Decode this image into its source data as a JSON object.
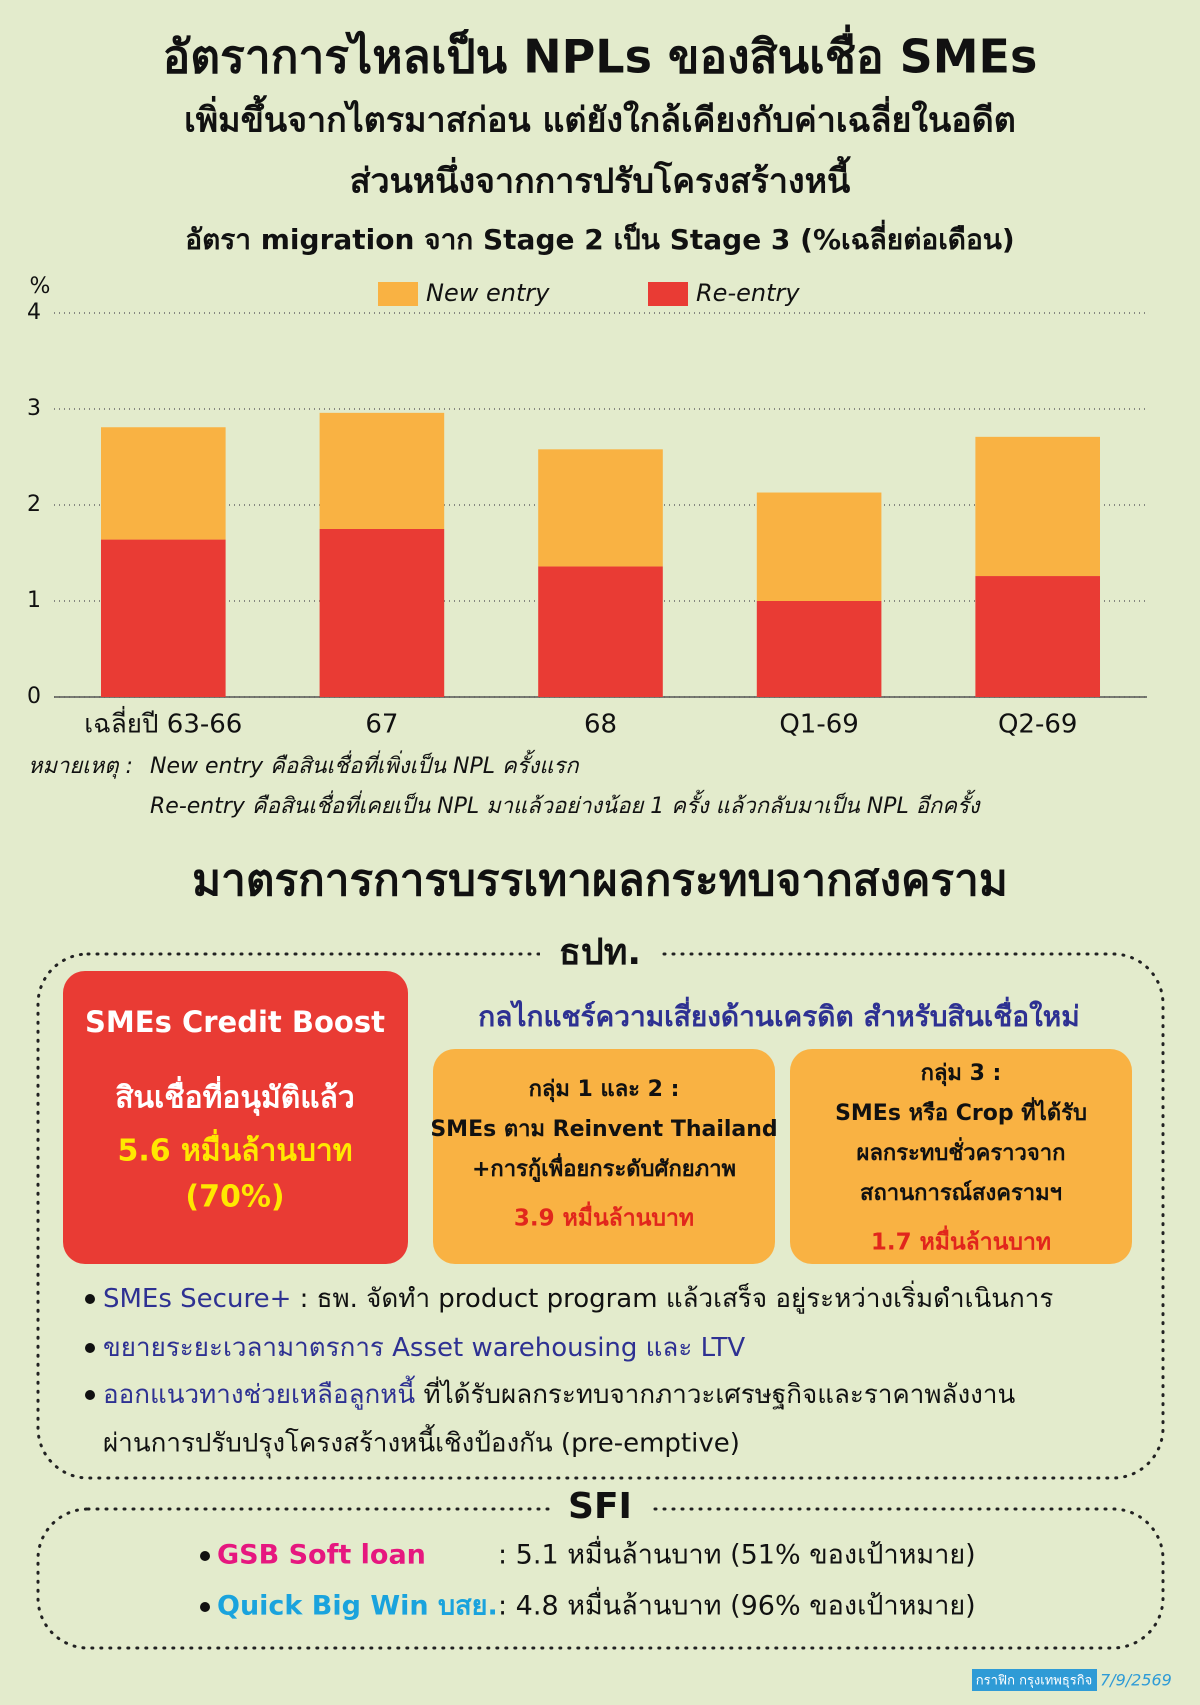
{
  "header": {
    "title": "อัตราการไหลเป็น NPLs ของสินเชื่อ SMEs",
    "subtitle1": "เพิ่มขึ้นจากไตรมาสก่อน แต่ยังใกล้เคียงกับค่าเฉลี่ยในอดีต",
    "subtitle2": "ส่วนหนึ่งจากการปรับโครงสร้างหนี้"
  },
  "chart_data": {
    "type": "bar",
    "stacked": true,
    "title": "อัตรา migration จาก Stage 2 เป็น Stage 3 (%เฉลี่ยต่อเดือน)",
    "y_label": "%",
    "categories": [
      "เฉลี่ยปี 63-66",
      "67",
      "68",
      "Q1-69",
      "Q2-69"
    ],
    "series": [
      {
        "name": "New entry",
        "color": "#f9b243",
        "values": [
          1.17,
          1.21,
          1.22,
          1.13,
          1.45
        ]
      },
      {
        "name": "Re-entry",
        "color": "#e93b34",
        "values": [
          1.64,
          1.75,
          1.36,
          1.0,
          1.26
        ]
      }
    ],
    "ylim": [
      0,
      4
    ],
    "yticks": [
      0,
      1,
      2,
      3,
      4
    ],
    "grid": true,
    "legend": "top"
  },
  "notes": {
    "label": "หมายเหตุ :",
    "lines": [
      "New entry คือสินเชื่อที่เพิ่งเป็น NPL ครั้งแรก",
      "Re-entry คือสินเชื่อที่เคยเป็น NPL มาแล้วอย่างน้อย 1 ครั้ง แล้วกลับมาเป็น NPL อีกครั้ง"
    ]
  },
  "measures": {
    "title": "มาตรการการบรรเทาผลกระทบจากสงคราม",
    "bot": {
      "label": "ธปท.",
      "boost": {
        "title": "SMEs Credit Boost",
        "line": "สินเชื่อที่อนุมัติแล้ว",
        "amount": "5.6 หมื่นล้านบาท",
        "share": "(70%)"
      },
      "risk_sharing": {
        "title": "กลไกแชร์ความเสี่ยงด้านเครดิต สำหรับสินเชื่อใหม่",
        "groups": [
          {
            "label": "กลุ่ม 1 และ 2 :",
            "lines": [
              "SMEs ตาม Reinvent Thailand",
              "+การกู้เพื่อยกระดับศักยภาพ"
            ],
            "amount": "3.9 หมื่นล้านบาท"
          },
          {
            "label": "กลุ่ม 3 :",
            "lines": [
              "SMEs หรือ Crop ที่ได้รับ",
              "ผลกระทบชั่วคราวจาก",
              "สถานการณ์สงครามฯ"
            ],
            "amount": "1.7 หมื่นล้านบาท"
          }
        ]
      },
      "bullets": [
        {
          "highlight": "SMEs Secure+",
          "text": " : ธพ. จัดทำ product program แล้วเสร็จ อยู่ระหว่างเริ่มดำเนินการ"
        },
        {
          "highlight": "ขยายระยะเวลามาตรการ Asset warehousing และ LTV"
        },
        {
          "highlight": "ออกแนวทางช่วยเหลือลูกหนี้",
          "text": " ที่ได้รับผลกระทบจากภาวะเศรษฐกิจและราคาพลังงาน",
          "continuation": "ผ่านการปรับปรุงโครงสร้างหนี้เชิงป้องกัน (pre-emptive)"
        }
      ]
    },
    "sfi": {
      "label": "SFI",
      "items": [
        {
          "name": "GSB Soft loan",
          "text": ": 5.1 หมื่นล้านบาท (51% ของเป้าหมาย)"
        },
        {
          "name": "Quick Big Win บสย.",
          "text": ": 4.8 หมื่นล้านบาท (96% ของเป้าหมาย)"
        }
      ]
    }
  },
  "footer": {
    "credit": "กราฟิก กรุงเทพธุรกิจ",
    "date": "7/9/2569"
  }
}
